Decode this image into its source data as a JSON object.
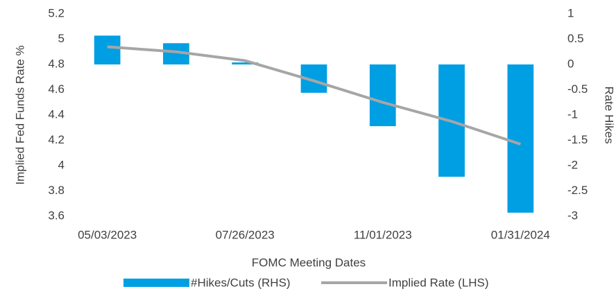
{
  "chart_data": {
    "type": "bar_line",
    "x_label": "FOMC Meeting Dates",
    "y_label": "Implied Fed Funds Rate %",
    "y2_label": "Rate Hikes",
    "categories": [
      "05/03/2023",
      null,
      "07/26/2023",
      null,
      "11/01/2023",
      null,
      "01/31/2024"
    ],
    "series": [
      {
        "name": "#Hikes/Cuts (RHS)",
        "color": "#009fe3",
        "kind": "bar",
        "axis": "y2",
        "values": [
          0.57,
          0.42,
          0.04,
          -0.56,
          -1.22,
          -2.22,
          -2.93
        ]
      },
      {
        "name": "Implied Rate (LHS)",
        "color": "#a6a6a6",
        "kind": "line",
        "values": [
          4.94,
          4.9,
          4.83,
          4.67,
          4.5,
          4.35,
          4.17
        ]
      }
    ],
    "ylim": [
      3.6,
      5.2
    ],
    "yticks": [
      3.6,
      3.8,
      4,
      4.2,
      4.4,
      4.6,
      4.8,
      5,
      5.2
    ],
    "y2lim": [
      -3,
      1
    ],
    "y2ticks": [
      -3,
      -2.5,
      -2,
      -1.5,
      -1,
      -0.5,
      0,
      0.5,
      1
    ]
  }
}
